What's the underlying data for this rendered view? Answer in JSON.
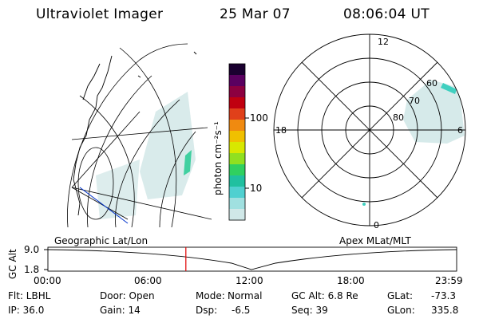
{
  "header": {
    "title": "Ultraviolet Imager",
    "date": "25 Mar 07",
    "time": "08:06:04 UT"
  },
  "colorbar": {
    "label": "photon cm⁻²s⁻¹",
    "ticks": [
      "100",
      "10"
    ],
    "colors": [
      "#1a0030",
      "#5a0060",
      "#8c0040",
      "#c00010",
      "#e0401a",
      "#f08a10",
      "#f0c000",
      "#d8e800",
      "#90e020",
      "#30d060",
      "#20c0a0",
      "#50d0d0",
      "#a0e0e0",
      "#d0e8e8"
    ]
  },
  "geo_panel": {
    "label": "Geographic Lat/Lon"
  },
  "polar_panel": {
    "label": "Apex MLat/MLT",
    "mlt_labels": {
      "top": "12",
      "left": "18",
      "right": "6",
      "bottom": "0"
    },
    "lat_labels": [
      "60",
      "70",
      "80"
    ]
  },
  "timeline": {
    "ylabel": "GC Alt",
    "y_ticks": [
      "9.0",
      "1.8"
    ],
    "x_ticks": [
      "00:00",
      "06:00",
      "12:00",
      "18:00",
      "23:59"
    ],
    "current_marker_hours": 8.1,
    "marker_color": "#e00000"
  },
  "info": {
    "row1": {
      "flt": "Flt: LBHL",
      "door": "Door: Open",
      "mode_label": "Mode:",
      "mode_value": "Normal",
      "gcalt": "GC Alt: 6.8 Re",
      "glat_label": "GLat:",
      "glat_value": "-73.3"
    },
    "row2": {
      "ip": "IP: 36.0",
      "gain": "Gain: 14",
      "dsp_label": "Dsp:",
      "dsp_value": "-6.5",
      "seq": "Seq: 39",
      "glon_label": "GLon:",
      "glon_value": "335.8"
    }
  }
}
